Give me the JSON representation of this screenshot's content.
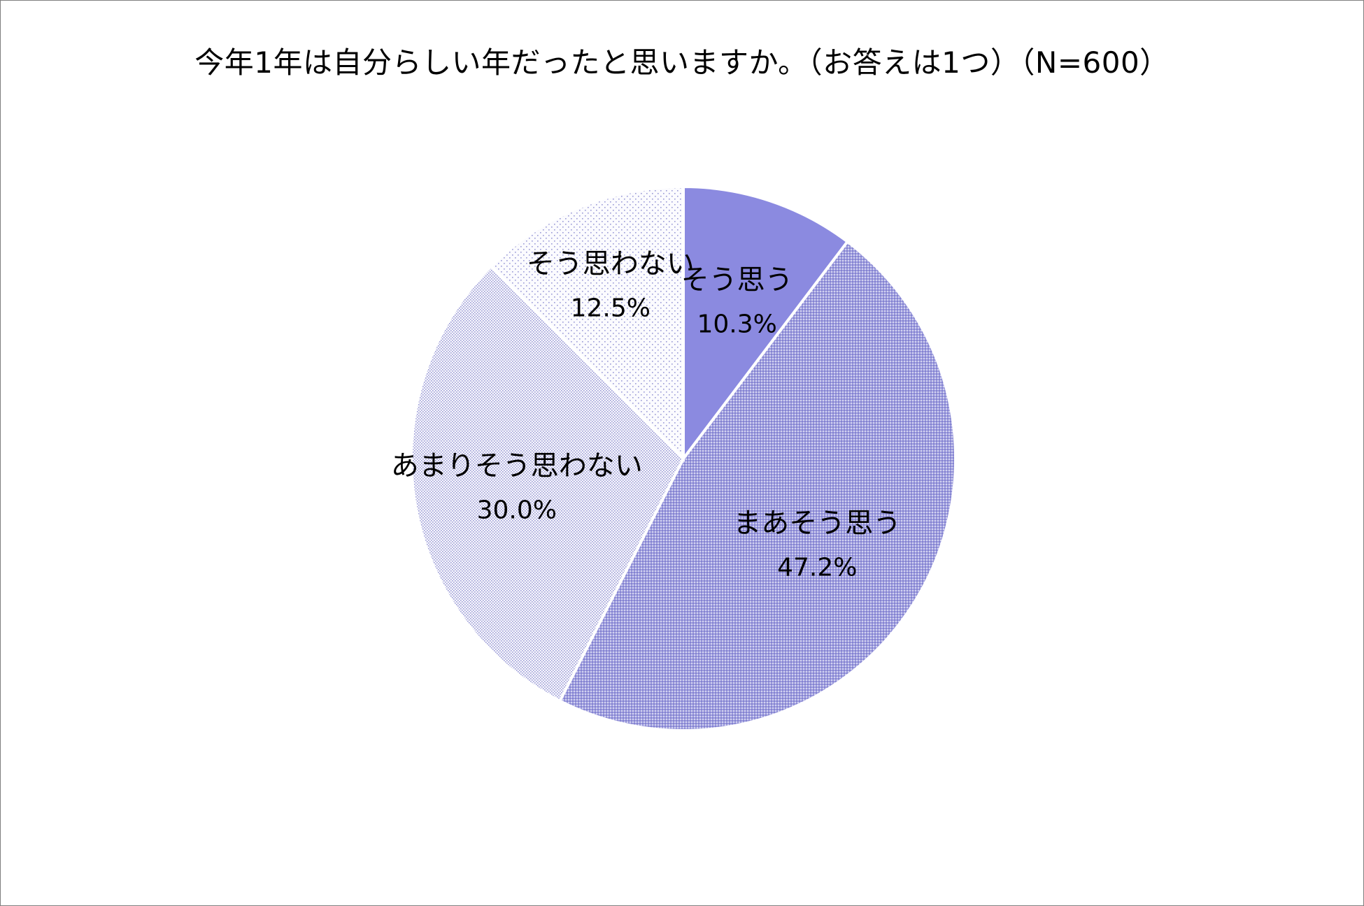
{
  "chart_data": {
    "type": "pie",
    "title": "今年1年は自分らしい年だったと思いますか。（お答えは1つ）（N=600）",
    "slices": [
      {
        "label": "そう思う",
        "value": 10.3,
        "display": "10.3%",
        "color": "#8b8ae0",
        "fill": "solid"
      },
      {
        "label": "まあそう思う",
        "value": 47.2,
        "display": "47.2%",
        "color": "#8b8ae0",
        "fill": "dense-dots"
      },
      {
        "label": "あまりそう思わない",
        "value": 30.0,
        "display": "30.0%",
        "color": "#8b8ae0",
        "fill": "light-dots"
      },
      {
        "label": "そう思わない",
        "value": 12.5,
        "display": "12.5%",
        "color": "#8b8ae0",
        "fill": "sparse-dots"
      }
    ]
  }
}
